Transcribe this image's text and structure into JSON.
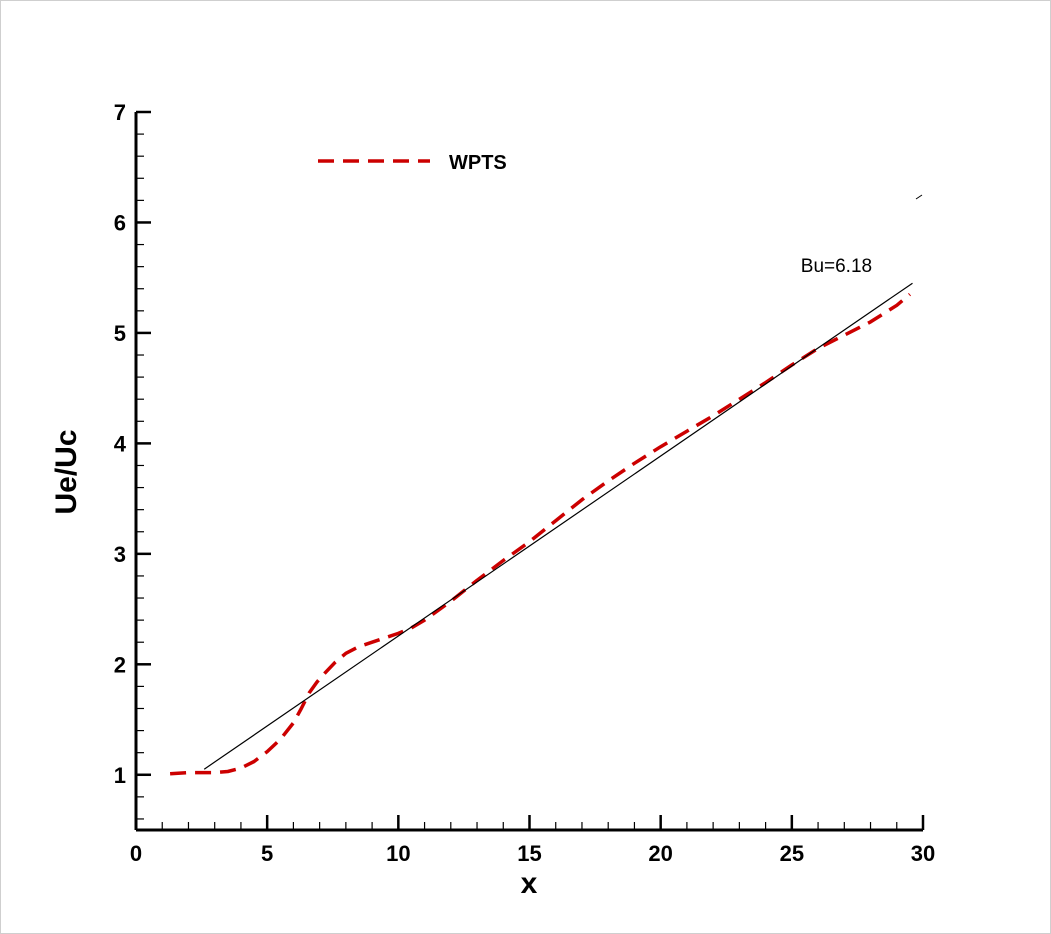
{
  "chart_data": {
    "type": "line",
    "xlabel": "x",
    "ylabel": "Ue/Uc",
    "xlim": [
      0,
      30
    ],
    "ylim": [
      0.5,
      7
    ],
    "x_major_ticks": [
      0,
      5,
      10,
      15,
      20,
      25,
      30
    ],
    "y_major_ticks": [
      1,
      2,
      3,
      4,
      5,
      6,
      7
    ],
    "x_minor_step": 1,
    "y_minor_step": 0.2,
    "grid": false,
    "legend_placement": "top-left",
    "series": [
      {
        "name": "WPTS",
        "style": "dashed",
        "color": "#cc0000",
        "x": [
          1.3,
          2.0,
          2.5,
          3.0,
          3.5,
          4.0,
          4.5,
          5.0,
          5.5,
          6.0,
          6.3,
          6.6,
          6.9,
          7.2,
          7.6,
          8.0,
          8.5,
          9.0,
          9.5,
          10.0,
          10.5,
          11.0,
          12.0,
          13.0,
          14.0,
          15.0,
          16.0,
          17.0,
          18.0,
          19.0,
          20.0,
          21.0,
          22.0,
          23.0,
          24.0,
          25.0,
          26.0,
          27.0,
          28.0,
          29.0,
          29.5
        ],
        "y": [
          1.01,
          1.02,
          1.02,
          1.02,
          1.03,
          1.06,
          1.12,
          1.21,
          1.32,
          1.47,
          1.6,
          1.74,
          1.84,
          1.92,
          2.02,
          2.1,
          2.16,
          2.2,
          2.24,
          2.28,
          2.33,
          2.4,
          2.57,
          2.76,
          2.94,
          3.11,
          3.3,
          3.49,
          3.66,
          3.82,
          3.97,
          4.11,
          4.25,
          4.4,
          4.55,
          4.71,
          4.86,
          4.98,
          5.1,
          5.25,
          5.35
        ]
      },
      {
        "style": "solid",
        "color": "#000000",
        "x": [
          2.6,
          29.6
        ],
        "y": [
          1.05,
          5.45
        ]
      }
    ],
    "annotations": [
      {
        "text": "Bu=6.18",
        "x": 26.7,
        "y": 5.55
      }
    ]
  }
}
